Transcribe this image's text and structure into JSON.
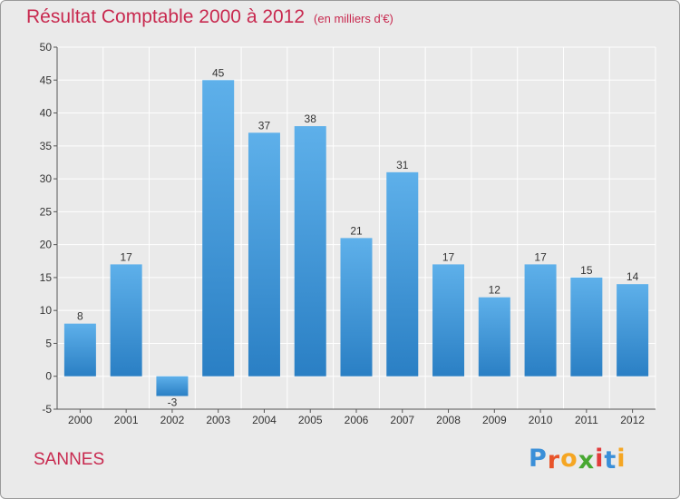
{
  "header": {
    "title": "Résultat Comptable 2000 à 2012",
    "subtitle": "(en milliers d'€)"
  },
  "footer": {
    "commune": "SANNES",
    "logo_letters": [
      "P",
      "r",
      "o",
      "x",
      "i",
      "t",
      "i"
    ]
  },
  "colors": {
    "title": "#c8294f",
    "bar_top": "#5eb0ea",
    "bar_bottom": "#2a7fc4",
    "grid": "#ffffff",
    "background": "#eaeaea",
    "logo": [
      "#3a8fd8",
      "#e8542a",
      "#f5a623",
      "#48a832",
      "#e23b3b",
      "#3a8fd8",
      "#f5a623"
    ]
  },
  "chart_data": {
    "type": "bar",
    "title": "Résultat Comptable 2000 à 2012",
    "subtitle": "(en milliers d'€)",
    "categories": [
      "2000",
      "2001",
      "2002",
      "2003",
      "2004",
      "2005",
      "2006",
      "2007",
      "2008",
      "2009",
      "2010",
      "2011",
      "2012"
    ],
    "values": [
      8,
      17,
      -3,
      45,
      37,
      38,
      21,
      31,
      17,
      12,
      17,
      15,
      14
    ],
    "ylim": [
      -5,
      50
    ],
    "yticks": [
      -5,
      0,
      5,
      10,
      15,
      20,
      25,
      30,
      35,
      40,
      45,
      50
    ],
    "xlabel": "",
    "ylabel": "",
    "grid": true
  }
}
